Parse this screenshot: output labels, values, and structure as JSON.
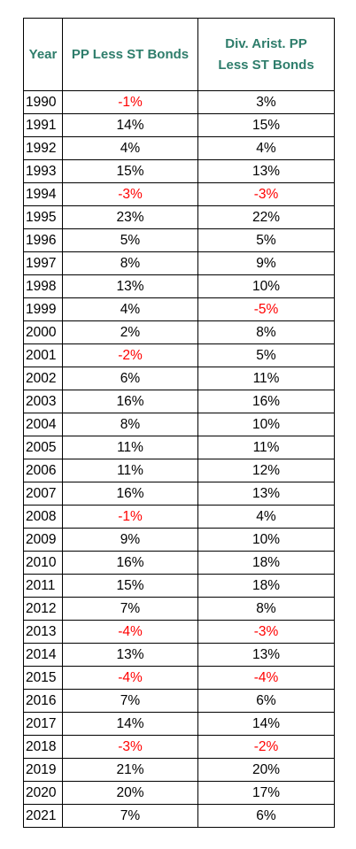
{
  "table": {
    "headers": {
      "year": "Year",
      "pp": "PP Less ST Bonds",
      "div_line1": "Div. Arist. PP",
      "div_line2": "Less ST Bonds"
    },
    "rows": [
      {
        "year": "1990",
        "pp": "-1%",
        "div": "3%"
      },
      {
        "year": "1991",
        "pp": "14%",
        "div": "15%"
      },
      {
        "year": "1992",
        "pp": "4%",
        "div": "4%"
      },
      {
        "year": "1993",
        "pp": "15%",
        "div": "13%"
      },
      {
        "year": "1994",
        "pp": "-3%",
        "div": "-3%"
      },
      {
        "year": "1995",
        "pp": "23%",
        "div": "22%"
      },
      {
        "year": "1996",
        "pp": "5%",
        "div": "5%"
      },
      {
        "year": "1997",
        "pp": "8%",
        "div": "9%"
      },
      {
        "year": "1998",
        "pp": "13%",
        "div": "10%"
      },
      {
        "year": "1999",
        "pp": "4%",
        "div": "-5%"
      },
      {
        "year": "2000",
        "pp": "2%",
        "div": "8%"
      },
      {
        "year": "2001",
        "pp": "-2%",
        "div": "5%"
      },
      {
        "year": "2002",
        "pp": "6%",
        "div": "11%"
      },
      {
        "year": "2003",
        "pp": "16%",
        "div": "16%"
      },
      {
        "year": "2004",
        "pp": "8%",
        "div": "10%"
      },
      {
        "year": "2005",
        "pp": "11%",
        "div": "11%"
      },
      {
        "year": "2006",
        "pp": "11%",
        "div": "12%"
      },
      {
        "year": "2007",
        "pp": "16%",
        "div": "13%"
      },
      {
        "year": "2008",
        "pp": "-1%",
        "div": "4%"
      },
      {
        "year": "2009",
        "pp": "9%",
        "div": "10%"
      },
      {
        "year": "2010",
        "pp": "16%",
        "div": "18%"
      },
      {
        "year": "2011",
        "pp": "15%",
        "div": "18%"
      },
      {
        "year": "2012",
        "pp": "7%",
        "div": "8%"
      },
      {
        "year": "2013",
        "pp": "-4%",
        "div": "-3%"
      },
      {
        "year": "2014",
        "pp": "13%",
        "div": "13%"
      },
      {
        "year": "2015",
        "pp": "-4%",
        "div": "-4%"
      },
      {
        "year": "2016",
        "pp": "7%",
        "div": "6%"
      },
      {
        "year": "2017",
        "pp": "14%",
        "div": "14%"
      },
      {
        "year": "2018",
        "pp": "-3%",
        "div": "-2%"
      },
      {
        "year": "2019",
        "pp": "21%",
        "div": "20%"
      },
      {
        "year": "2020",
        "pp": "20%",
        "div": "17%"
      },
      {
        "year": "2021",
        "pp": "7%",
        "div": "6%"
      }
    ]
  },
  "colors": {
    "header_text": "#2e7d6b",
    "negative_text": "#ff0000",
    "positive_text": "#000000"
  }
}
